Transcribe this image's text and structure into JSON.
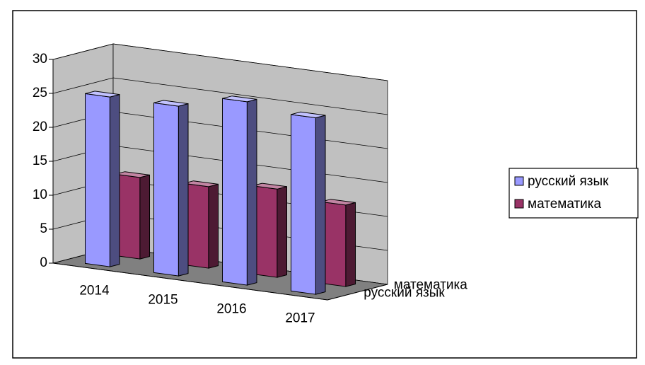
{
  "chart_data": {
    "type": "bar",
    "categories": [
      "2014",
      "2015",
      "2016",
      "2017"
    ],
    "series": [
      {
        "name": "русский язык",
        "color": "#9999ff",
        "values": [
          25,
          25,
          27,
          26
        ]
      },
      {
        "name": "математика",
        "color": "#993366",
        "values": [
          12,
          12,
          13,
          12
        ]
      }
    ],
    "ylim": [
      0,
      30
    ],
    "yticks": [
      0,
      5,
      10,
      15,
      20,
      25,
      30
    ],
    "grid": true,
    "legend": "right"
  }
}
